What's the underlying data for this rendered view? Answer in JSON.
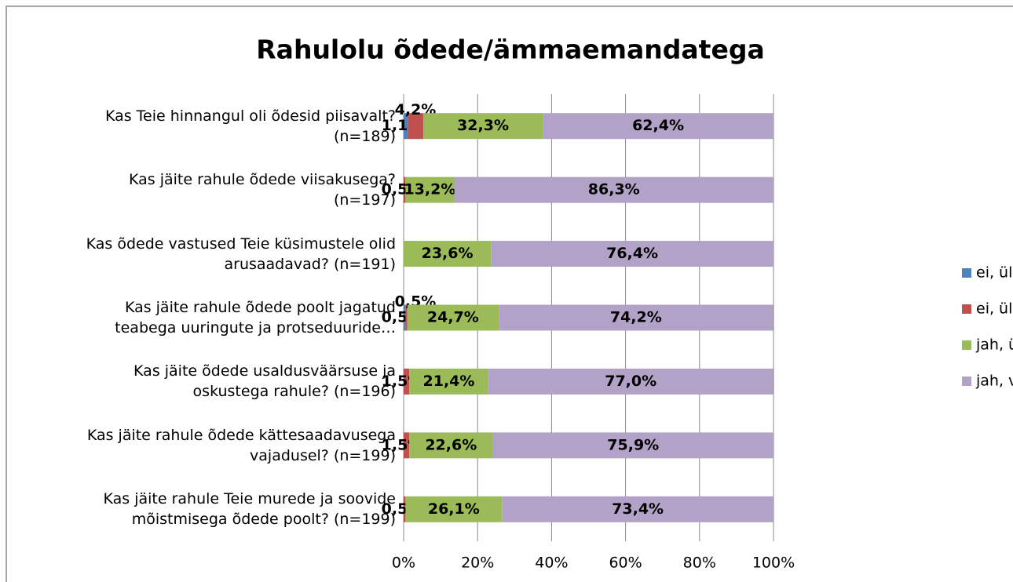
{
  "chart_data": {
    "type": "stacked_bar_horizontal",
    "title": "Rahulolu õdede/ämmaemandatega",
    "categories": [
      "Kas Teie hinnangul oli õdesid piisavalt?\n(n=189)",
      "Kas jäite rahule õdede viisakusega?\n(n=197)",
      "Kas õdede vastused Teie küsimustele olid\narusaadavad? (n=191)",
      "Kas jäite rahule õdede poolt jagatud\nteabega uuringute ja protseduuride…",
      "Kas jäite õdede usaldusväärsuse ja\noskustega rahule? (n=196)",
      "Kas jäite rahule õdede kättesaadavusega\nvajadusel? (n=199)",
      "Kas jäite rahule Teie murede ja soovide\nmõistmisega õdede poolt? (n=199)"
    ],
    "series": [
      {
        "name": "ei, üldse mitte",
        "color": "#4f81bd",
        "values": [
          1.1,
          null,
          null,
          0.5,
          null,
          null,
          null
        ],
        "value_labels": [
          "1,1%",
          null,
          null,
          "0,5%",
          null,
          null,
          null
        ]
      },
      {
        "name": "ei, üldiselt mitte",
        "color": "#c0504d",
        "values": [
          4.2,
          0.5,
          null,
          0.5,
          1.5,
          1.5,
          0.5
        ],
        "value_labels": [
          "4,2%",
          "0,5%",
          null,
          "0,5%",
          "1,5%",
          "1,5%",
          "0,5%"
        ]
      },
      {
        "name": "jah, üldiselt küll",
        "color": "#9bbb59",
        "values": [
          32.3,
          13.2,
          23.6,
          24.7,
          21.4,
          22.6,
          26.1
        ],
        "value_labels": [
          "32,3%",
          "13,2%",
          "23,6%",
          "24,7%",
          "21,4%",
          "22,6%",
          "26,1%"
        ]
      },
      {
        "name": "jah, väga",
        "color": "#b3a2c7",
        "values": [
          62.4,
          86.3,
          76.4,
          74.2,
          77.0,
          75.9,
          73.4
        ],
        "value_labels": [
          "62,4%",
          "86,3%",
          "76,4%",
          "74,2%",
          "77,0%",
          "75,9%",
          "73,4%"
        ]
      }
    ],
    "xlim": [
      0,
      100
    ],
    "xticks": [
      {
        "value": 0,
        "label": "0%"
      },
      {
        "value": 20,
        "label": "20%"
      },
      {
        "value": 40,
        "label": "40%"
      },
      {
        "value": 60,
        "label": "60%"
      },
      {
        "value": 80,
        "label": "80%"
      },
      {
        "value": 100,
        "label": "100%"
      }
    ],
    "grid": true,
    "legend": "right"
  }
}
